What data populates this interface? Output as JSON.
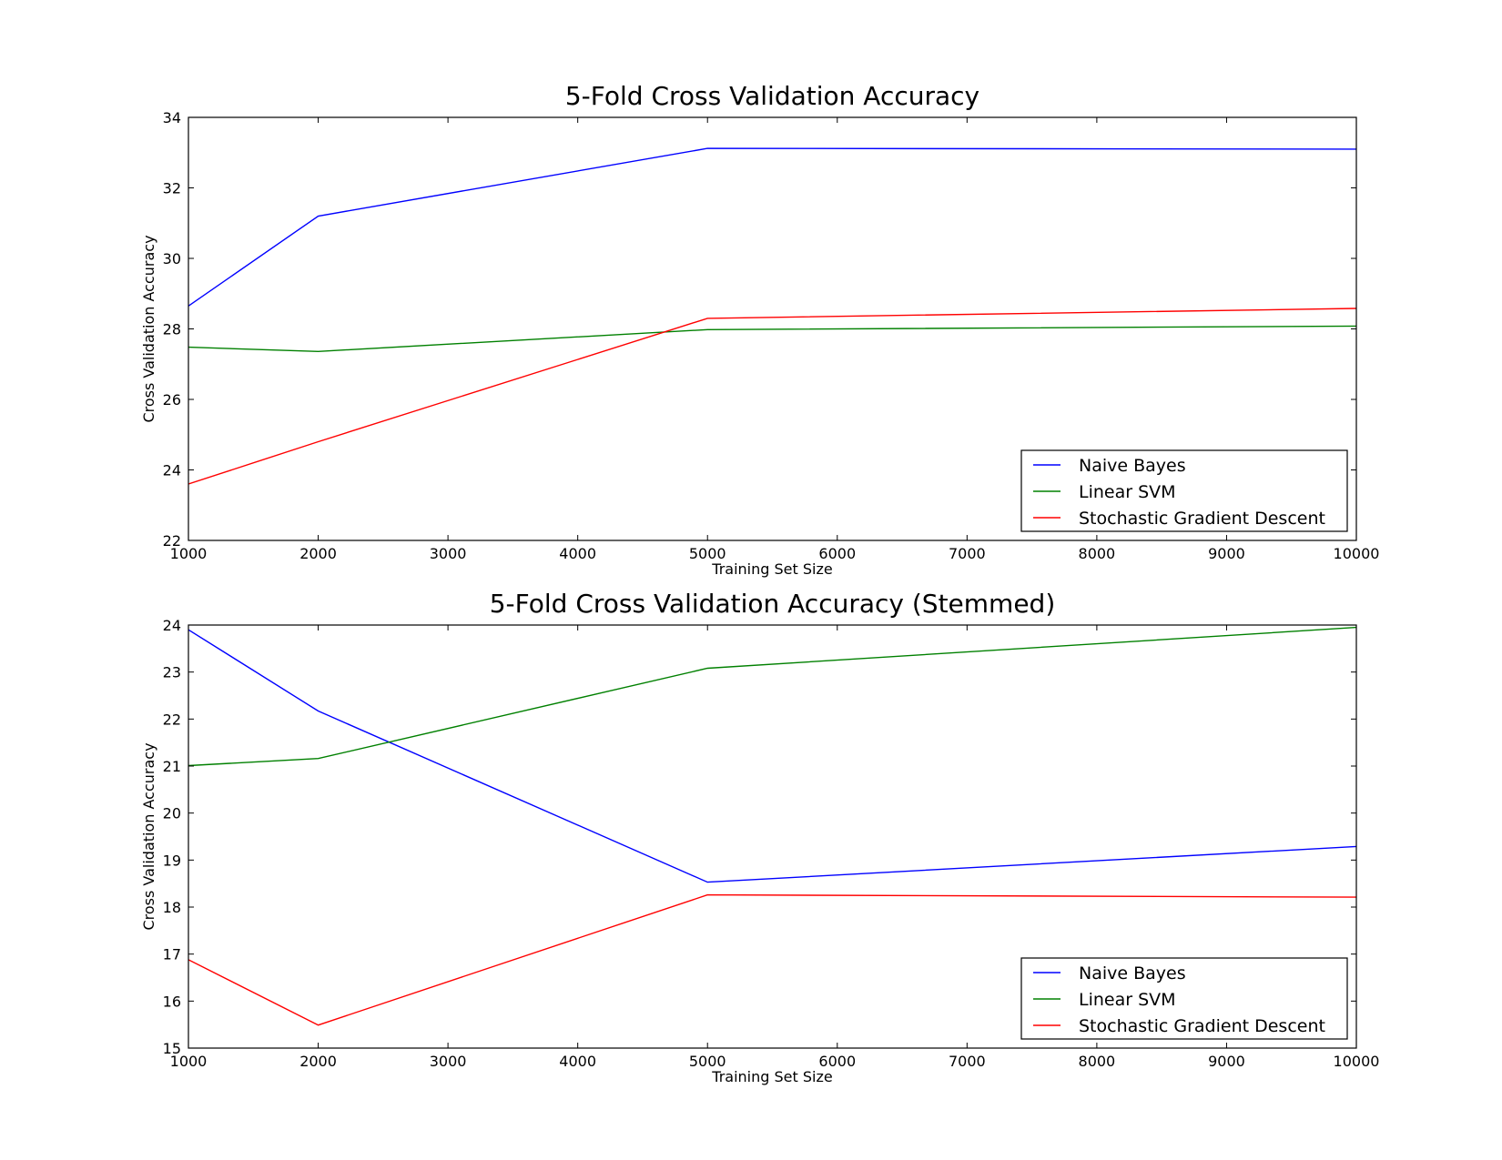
{
  "chart_data": [
    {
      "type": "line",
      "title": "5-Fold Cross Validation Accuracy",
      "xlabel": "Training Set Size",
      "ylabel": "Cross Validation Accuracy",
      "xlim": [
        1000,
        10000
      ],
      "ylim": [
        22,
        34
      ],
      "xticks": [
        1000,
        2000,
        3000,
        4000,
        5000,
        6000,
        7000,
        8000,
        9000,
        10000
      ],
      "yticks": [
        22,
        24,
        26,
        28,
        30,
        32,
        34
      ],
      "grid": false,
      "legend": "lower-right",
      "x": [
        1000,
        2000,
        5000,
        10000
      ],
      "series": [
        {
          "name": "Naive Bayes",
          "color": "#0000ff",
          "values": [
            28.65,
            31.2,
            33.12,
            33.1
          ]
        },
        {
          "name": "Linear SVM",
          "color": "#008000",
          "values": [
            27.48,
            27.36,
            27.98,
            28.08
          ]
        },
        {
          "name": "Stochastic Gradient Descent",
          "color": "#ff0000",
          "values": [
            23.6,
            24.8,
            28.3,
            28.58
          ]
        }
      ]
    },
    {
      "type": "line",
      "title": "5-Fold Cross Validation Accuracy (Stemmed)",
      "xlabel": "Training Set Size",
      "ylabel": "Cross Validation Accuracy",
      "xlim": [
        1000,
        10000
      ],
      "ylim": [
        15,
        24
      ],
      "xticks": [
        1000,
        2000,
        3000,
        4000,
        5000,
        6000,
        7000,
        8000,
        9000,
        10000
      ],
      "yticks": [
        15,
        16,
        17,
        18,
        19,
        20,
        21,
        22,
        23,
        24
      ],
      "grid": false,
      "legend": "lower-right",
      "x": [
        1000,
        2000,
        5000,
        10000
      ],
      "series": [
        {
          "name": "Naive Bayes",
          "color": "#0000ff",
          "values": [
            23.9,
            22.17,
            18.53,
            19.29
          ]
        },
        {
          "name": "Linear SVM",
          "color": "#008000",
          "values": [
            21.01,
            21.16,
            23.08,
            23.95
          ]
        },
        {
          "name": "Stochastic Gradient Descent",
          "color": "#ff0000",
          "values": [
            16.88,
            15.49,
            18.26,
            18.21
          ]
        }
      ]
    }
  ]
}
